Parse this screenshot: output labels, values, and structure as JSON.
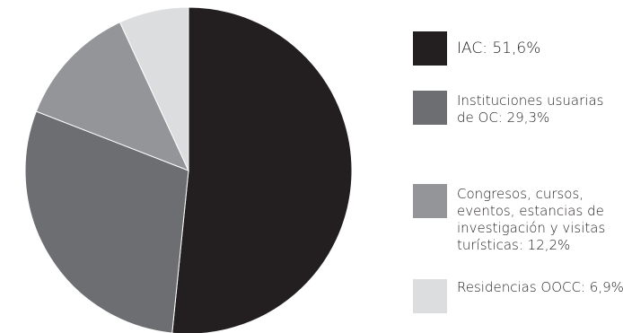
{
  "chart_data": {
    "type": "pie",
    "title": "",
    "start_angle_deg": 0,
    "direction": "clockwise",
    "slices": [
      {
        "label": "IAC: 51,6%",
        "value": 51.6,
        "color": "#231f20"
      },
      {
        "label": "Instituciones usuarias de OC: 29,3%",
        "value": 29.3,
        "color": "#6d6e71"
      },
      {
        "label": "Congresos, cursos, eventos, estancias de investigación y visitas turísticas: 12,2%",
        "value": 12.2,
        "color": "#939598"
      },
      {
        "label": "Residencias OOCC: 6,9%",
        "value": 6.9,
        "color": "#dcdddf"
      }
    ],
    "legend_placement": "right"
  },
  "legend": {
    "items": [
      {
        "label": "IAC: 51,6%",
        "color": "#231f20"
      },
      {
        "label": "Instituciones usuarias de OC: 29,3%",
        "color": "#6d6e71"
      },
      {
        "label": "Congresos, cursos, eventos, estancias de investigación y visitas turísticas: 12,2%",
        "color": "#939598"
      },
      {
        "label": "Residencias OOCC: 6,9%",
        "color": "#dcdddf"
      }
    ]
  }
}
